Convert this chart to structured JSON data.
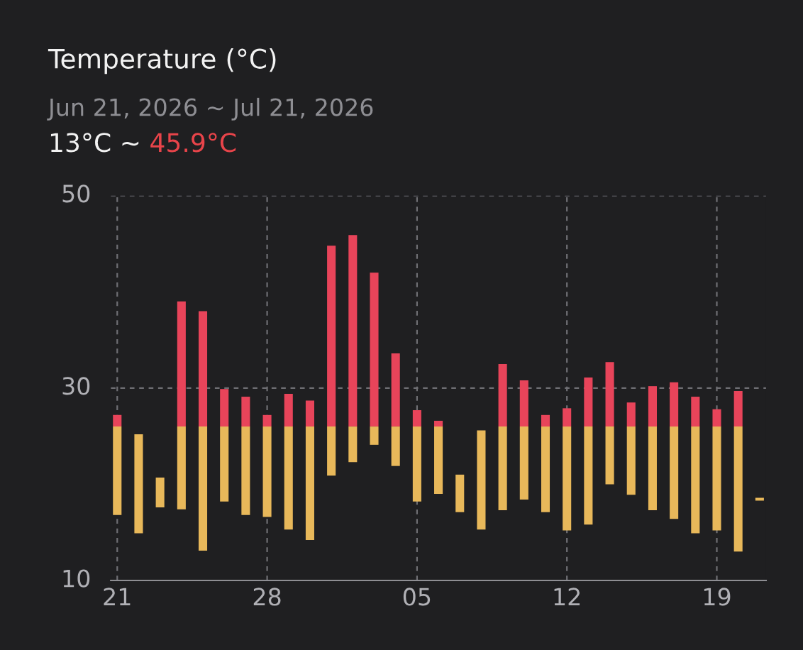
{
  "chart_data": {
    "type": "bar",
    "title": "Temperature (°C)",
    "subtitle": "Jun 21, 2026 ~ Jul 21, 2026",
    "annotations": [
      "13°C ~",
      "45.9°C"
    ],
    "categories": [
      "21",
      null,
      null,
      null,
      null,
      null,
      null,
      "28",
      null,
      null,
      null,
      null,
      null,
      null,
      "05",
      null,
      null,
      null,
      null,
      null,
      null,
      "12",
      null,
      null,
      null,
      null,
      null,
      null,
      "19",
      null,
      null
    ],
    "series": [
      {
        "color": "#e8b85a",
        "base": [
          16.8,
          14.9,
          17.6,
          17.4,
          13.1,
          18.2,
          16.8,
          16.6,
          15.3,
          14.2,
          20.9,
          22.3,
          24.1,
          21.9,
          18.2,
          19.0,
          17.1,
          15.3,
          17.3,
          18.4,
          17.1,
          15.2,
          15.8,
          20.0,
          18.9,
          17.3,
          16.4,
          14.9,
          15.2,
          13.0,
          18.3
        ],
        "values": [
          9.2,
          10.3,
          3.1,
          8.6,
          12.9,
          7.8,
          9.2,
          9.4,
          10.7,
          11.8,
          5.1,
          3.7,
          1.9,
          4.1,
          7.8,
          7.0,
          3.9,
          10.3,
          8.7,
          7.6,
          8.9,
          10.8,
          10.2,
          6.0,
          7.1,
          8.7,
          9.6,
          11.1,
          10.8,
          13.0,
          0.3
        ]
      },
      {
        "color": "#e8445a",
        "base": [
          26,
          null,
          null,
          26,
          26,
          26,
          26,
          26,
          26,
          26,
          26,
          26,
          26,
          26,
          26,
          26,
          null,
          null,
          26,
          26,
          26,
          26,
          26,
          26,
          26,
          26,
          26,
          26,
          26,
          26,
          null
        ],
        "values": [
          1.2,
          null,
          null,
          13.0,
          12.0,
          3.9,
          3.1,
          1.2,
          3.4,
          2.7,
          18.8,
          19.9,
          16.0,
          7.6,
          1.7,
          0.6,
          null,
          null,
          6.5,
          4.8,
          1.2,
          1.9,
          5.1,
          6.7,
          2.5,
          4.2,
          4.6,
          3.1,
          1.8,
          3.7,
          null
        ]
      }
    ],
    "ylim": [
      10,
      50
    ],
    "yticks": [
      10,
      30,
      50
    ],
    "grid": true,
    "legend": false
  }
}
